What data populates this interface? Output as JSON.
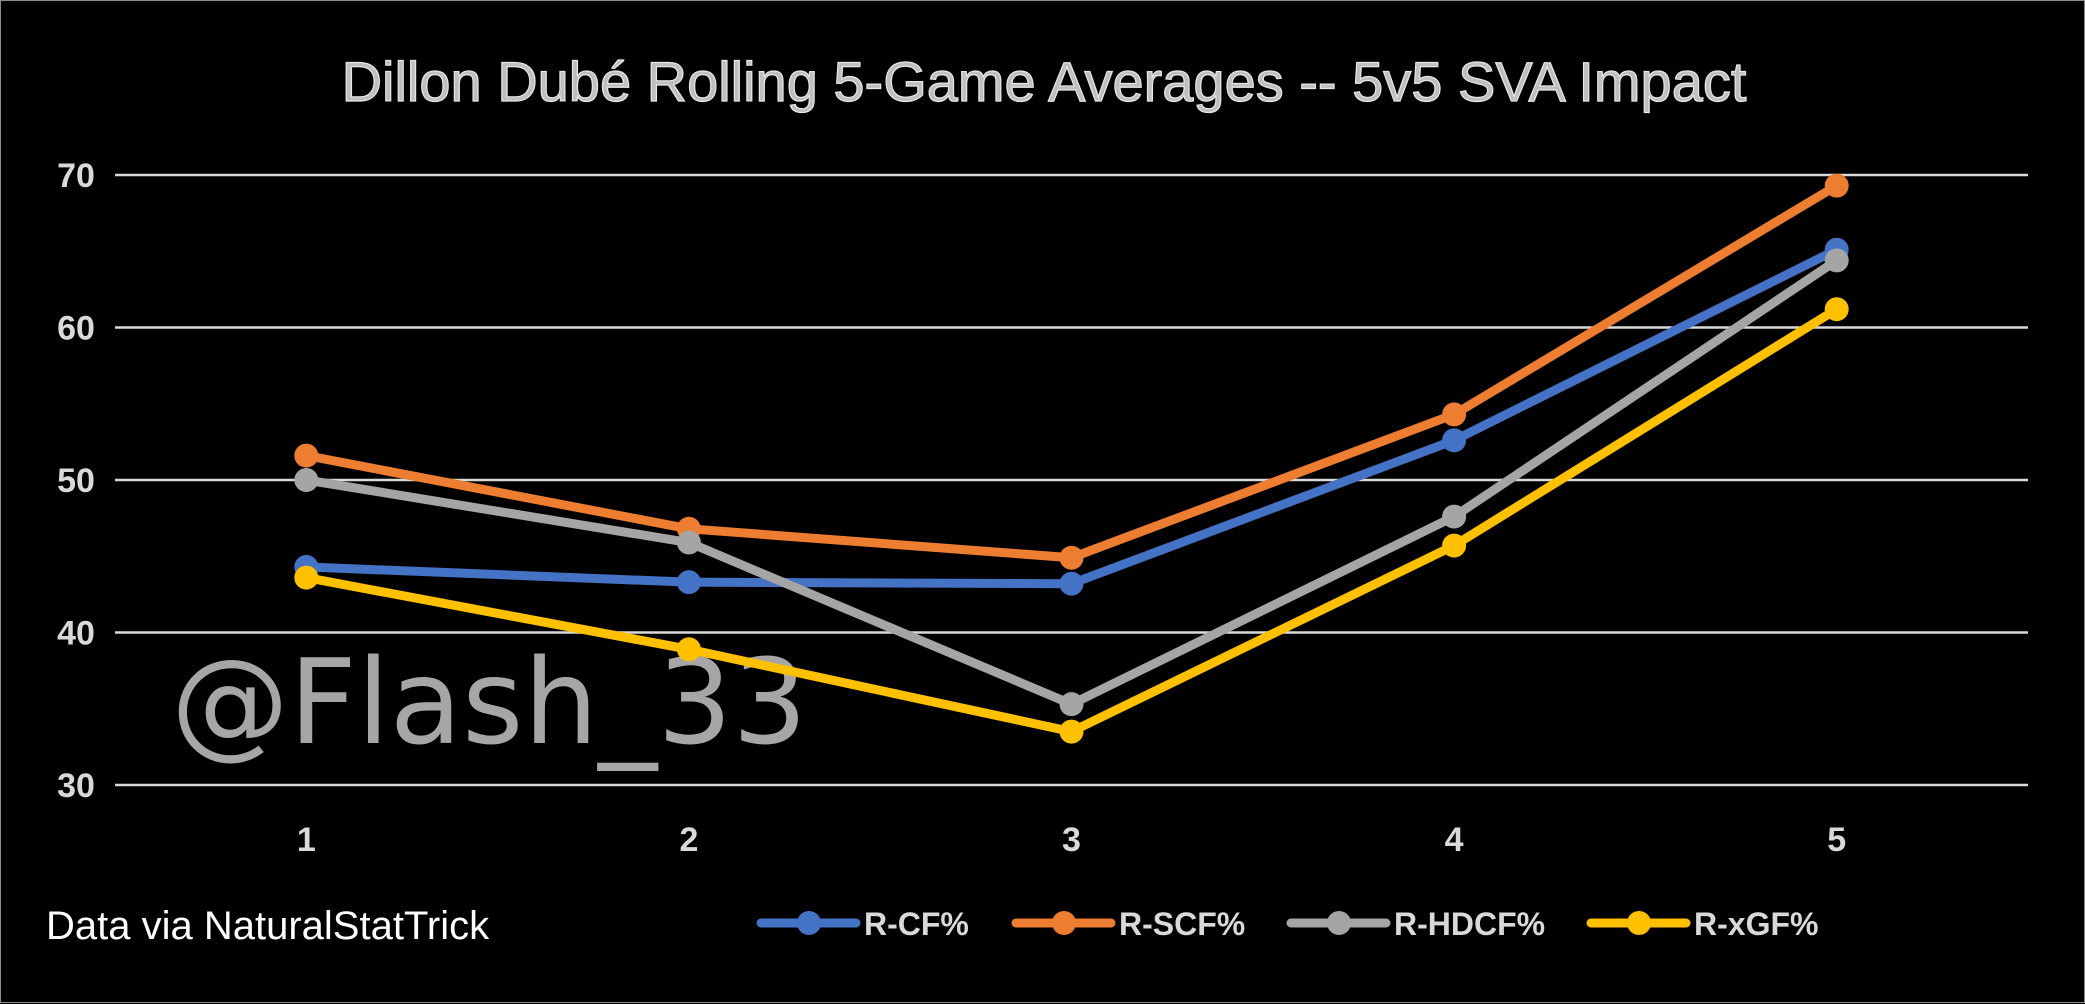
{
  "chart_data": {
    "type": "line",
    "title": "Dillon Dubé Rolling 5-Game Averages -- 5v5 SVA Impact",
    "xlabel": "",
    "ylabel": "",
    "categories": [
      "1",
      "2",
      "3",
      "4",
      "5"
    ],
    "ylim": [
      30,
      70
    ],
    "yticks": [
      30,
      40,
      50,
      60,
      70
    ],
    "grid": true,
    "legend_position": "bottom",
    "series": [
      {
        "name": "R-CF%",
        "color": "#4472c4",
        "values": [
          44.3,
          43.3,
          43.2,
          52.6,
          65.1
        ]
      },
      {
        "name": "R-SCF%",
        "color": "#ed7d31",
        "values": [
          51.6,
          46.8,
          44.9,
          54.3,
          69.3
        ]
      },
      {
        "name": "R-HDCF%",
        "color": "#a5a5a5",
        "values": [
          50.0,
          45.9,
          35.3,
          47.6,
          64.4
        ]
      },
      {
        "name": "R-xGF%",
        "color": "#ffc000",
        "values": [
          43.6,
          38.9,
          33.5,
          45.7,
          61.2
        ]
      }
    ],
    "annotations": [
      "@Flash_33",
      "Data via NaturalStatTrick"
    ]
  },
  "watermark": "@Flash_33",
  "footer": "Data via NaturalStatTrick"
}
